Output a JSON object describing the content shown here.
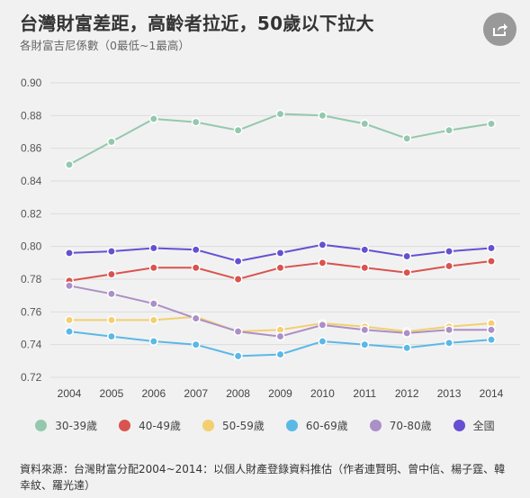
{
  "header": {
    "title": "台灣財富差距，高齡者拉近，50歲以下拉大",
    "subtitle": "各財富吉尼係數（0最低~1最高）"
  },
  "share": {
    "icon": "share-icon"
  },
  "colors": {
    "background": "#f1f1f1",
    "grid": "#dcdcdc"
  },
  "chart_data": {
    "type": "line",
    "title": "台灣財富差距，高齡者拉近，50歲以下拉大",
    "subtitle": "各財富吉尼係數（0最低~1最高）",
    "x": [
      "2004",
      "2005",
      "2006",
      "2007",
      "2008",
      "2009",
      "2010",
      "2011",
      "2012",
      "2013",
      "2014"
    ],
    "ylim": [
      0.72,
      0.9
    ],
    "yticks": [
      "0.72",
      "0.74",
      "0.76",
      "0.78",
      "0.80",
      "0.82",
      "0.84",
      "0.86",
      "0.88",
      "0.90"
    ],
    "grid": true,
    "legend_position": "bottom",
    "series": [
      {
        "name": "30-39歲",
        "color": "#94c8ad",
        "values": [
          0.85,
          0.864,
          0.878,
          0.876,
          0.871,
          0.881,
          0.88,
          0.875,
          0.866,
          0.871,
          0.875
        ]
      },
      {
        "name": "40-49歲",
        "color": "#d9534f",
        "values": [
          0.779,
          0.783,
          0.787,
          0.787,
          0.78,
          0.787,
          0.79,
          0.787,
          0.784,
          0.788,
          0.791
        ]
      },
      {
        "name": "50-59歲",
        "color": "#f3cf6f",
        "values": [
          0.755,
          0.755,
          0.755,
          0.757,
          0.748,
          0.749,
          0.753,
          0.751,
          0.748,
          0.751,
          0.753
        ]
      },
      {
        "name": "60-69歲",
        "color": "#5ab8e6",
        "values": [
          0.748,
          0.745,
          0.742,
          0.74,
          0.733,
          0.734,
          0.742,
          0.74,
          0.738,
          0.741,
          0.743
        ]
      },
      {
        "name": "70-80歲",
        "color": "#ab8fc7",
        "values": [
          0.776,
          0.771,
          0.765,
          0.756,
          0.748,
          0.745,
          0.752,
          0.749,
          0.747,
          0.749,
          0.749
        ]
      },
      {
        "name": "全國",
        "color": "#6650d1",
        "values": [
          0.796,
          0.797,
          0.799,
          0.798,
          0.791,
          0.796,
          0.801,
          0.798,
          0.794,
          0.797,
          0.799
        ]
      }
    ]
  },
  "legend": [
    {
      "label": "30-39歲",
      "color": "#94c8ad"
    },
    {
      "label": "40-49歲",
      "color": "#d9534f"
    },
    {
      "label": "50-59歲",
      "color": "#f3cf6f"
    },
    {
      "label": "60-69歲",
      "color": "#5ab8e6"
    },
    {
      "label": "70-80歲",
      "color": "#ab8fc7"
    },
    {
      "label": "全國",
      "color": "#6650d1"
    }
  ],
  "source": {
    "text": "資料來源：台灣財富分配2004~2014：以個人財產登錄資料推估（作者連賢明、曾中信、楊子霆、韓幸紋、羅光達）"
  }
}
